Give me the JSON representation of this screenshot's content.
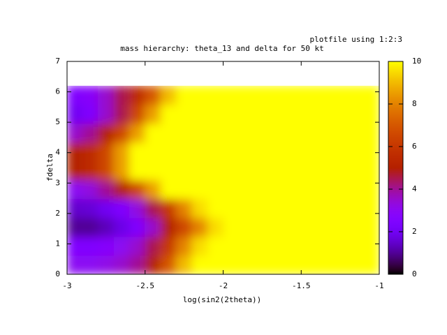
{
  "chart_data": {
    "type": "heatmap",
    "title": "mass hierarchy: theta_13 and delta for 50 kt",
    "key_title": "plotfile using 1:2:3",
    "x_label": "log(sin2(2theta))",
    "y_label": "fdelta",
    "colormap": "gnuplot",
    "xlim": [
      -3,
      -1
    ],
    "ylim": [
      0,
      7
    ],
    "zlim": [
      0,
      10
    ],
    "xticks": [
      -3,
      -2.5,
      -2,
      -1.5,
      -1
    ],
    "yticks": [
      0,
      1,
      2,
      3,
      4,
      5,
      6,
      7
    ],
    "zticks": [
      0,
      2,
      4,
      6,
      8,
      10
    ],
    "x": [
      -2.95,
      -2.85,
      -2.75,
      -2.65,
      -2.55,
      -2.45,
      -2.35,
      -2.25,
      -2.15,
      -2.05,
      -1.95,
      -1.85,
      -1.75,
      -1.65,
      -1.55,
      -1.45,
      -1.35,
      -1.25,
      -1.15,
      -1.05
    ],
    "y": [
      0.31,
      0.93,
      1.55,
      2.17,
      2.79,
      3.41,
      4.03,
      4.65,
      5.27,
      5.89
    ],
    "z": [
      [
        3,
        3,
        3.2,
        3.5,
        4,
        5,
        7,
        9,
        10,
        10,
        10,
        10,
        10,
        10,
        10,
        10,
        10,
        10,
        10,
        10
      ],
      [
        2.5,
        2.5,
        2.7,
        3,
        3.5,
        4.5,
        6,
        8,
        9.5,
        10,
        10,
        10,
        10,
        10,
        10,
        10,
        10,
        10,
        10,
        10
      ],
      [
        1,
        1,
        1.3,
        1.8,
        2.5,
        3.5,
        5,
        6.5,
        8,
        9.5,
        10,
        10,
        10,
        10,
        10,
        10,
        10,
        10,
        10,
        10
      ],
      [
        1.5,
        1.6,
        2,
        2.5,
        3.3,
        4.5,
        6,
        8,
        9.5,
        10,
        10,
        10,
        10,
        10,
        10,
        10,
        10,
        10,
        10,
        10
      ],
      [
        3,
        3.3,
        4,
        5,
        6.5,
        8.5,
        10,
        10,
        10,
        10,
        10,
        10,
        10,
        10,
        10,
        10,
        10,
        10,
        10,
        10
      ],
      [
        5,
        5.5,
        6.5,
        8.5,
        10,
        10,
        10,
        10,
        10,
        10,
        10,
        10,
        10,
        10,
        10,
        10,
        10,
        10,
        10,
        10
      ],
      [
        5,
        5.5,
        6.5,
        8.5,
        10,
        10,
        10,
        10,
        10,
        10,
        10,
        10,
        10,
        10,
        10,
        10,
        10,
        10,
        10,
        10
      ],
      [
        3.5,
        4,
        5,
        6.5,
        8.5,
        10,
        10,
        10,
        10,
        10,
        10,
        10,
        10,
        10,
        10,
        10,
        10,
        10,
        10,
        10
      ],
      [
        2,
        2.5,
        3.5,
        4.5,
        6.5,
        8.5,
        10,
        10,
        10,
        10,
        10,
        10,
        10,
        10,
        10,
        10,
        10,
        10,
        10,
        10
      ],
      [
        2.5,
        2.8,
        3.5,
        4.5,
        5.5,
        7,
        9,
        10,
        10,
        10,
        10,
        10,
        10,
        10,
        10,
        10,
        10,
        10,
        10,
        10
      ]
    ]
  }
}
